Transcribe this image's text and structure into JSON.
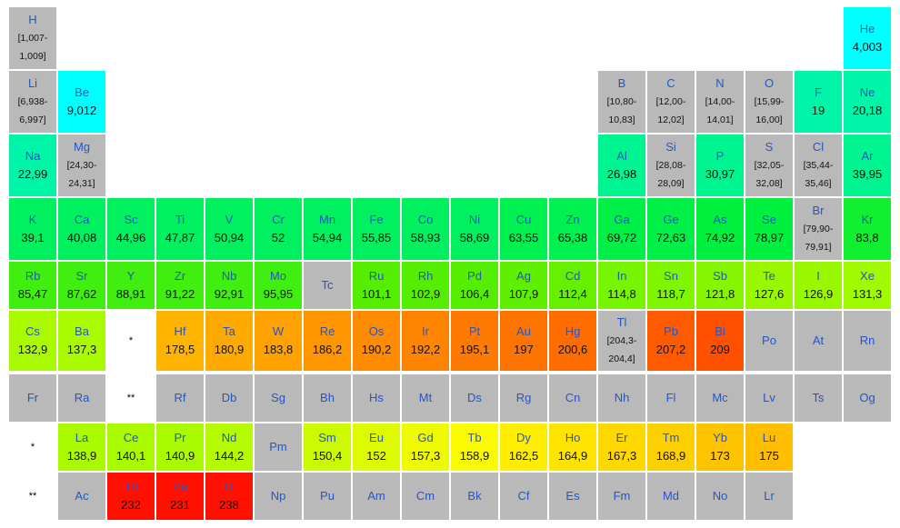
{
  "table": {
    "rows": [
      [
        {
          "symbol": "H",
          "weight": "[1,007-1,009]",
          "color": "#b9b9b9"
        },
        null,
        null,
        null,
        null,
        null,
        null,
        null,
        null,
        null,
        null,
        null,
        null,
        null,
        null,
        null,
        null,
        {
          "symbol": "He",
          "weight": "4,003",
          "color": "#00ffff"
        }
      ],
      [
        {
          "symbol": "Li",
          "weight": "[6,938-6,997]",
          "color": "#b9b9b9"
        },
        {
          "symbol": "Be",
          "weight": "9,012",
          "color": "#00ffff"
        },
        null,
        null,
        null,
        null,
        null,
        null,
        null,
        null,
        null,
        null,
        {
          "symbol": "B",
          "weight": "[10,80-10,83]",
          "color": "#b9b9b9"
        },
        {
          "symbol": "C",
          "weight": "[12,00-12,02]",
          "color": "#b9b9b9"
        },
        {
          "symbol": "N",
          "weight": "[14,00-14,01]",
          "color": "#b9b9b9"
        },
        {
          "symbol": "O",
          "weight": "[15,99-16,00]",
          "color": "#b9b9b9"
        },
        {
          "symbol": "F",
          "weight": "19",
          "color": "#00f5a8"
        },
        {
          "symbol": "Ne",
          "weight": "20,18",
          "color": "#00f5a8"
        }
      ],
      [
        {
          "symbol": "Na",
          "weight": "22,99",
          "color": "#00f5a8"
        },
        {
          "symbol": "Mg",
          "weight": "[24,30-24,31]",
          "color": "#b9b9b9"
        },
        null,
        null,
        null,
        null,
        null,
        null,
        null,
        null,
        null,
        null,
        {
          "symbol": "Al",
          "weight": "26,98",
          "color": "#00f590"
        },
        {
          "symbol": "Si",
          "weight": "[28,08-28,09]",
          "color": "#b9b9b9"
        },
        {
          "symbol": "P",
          "weight": "30,97",
          "color": "#00f590"
        },
        {
          "symbol": "S",
          "weight": "[32,05-32,08]",
          "color": "#b9b9b9"
        },
        {
          "symbol": "Cl",
          "weight": "[35,44-35,46]",
          "color": "#b9b9b9"
        },
        {
          "symbol": "Ar",
          "weight": "39,95",
          "color": "#00f590"
        }
      ],
      [
        {
          "symbol": "K",
          "weight": "39,1",
          "color": "#00f060"
        },
        {
          "symbol": "Ca",
          "weight": "40,08",
          "color": "#00f060"
        },
        {
          "symbol": "Sc",
          "weight": "44,96",
          "color": "#00f060"
        },
        {
          "symbol": "Ti",
          "weight": "47,87",
          "color": "#00f060"
        },
        {
          "symbol": "V",
          "weight": "50,94",
          "color": "#00f060"
        },
        {
          "symbol": "Cr",
          "weight": "52",
          "color": "#00f060"
        },
        {
          "symbol": "Mn",
          "weight": "54,94",
          "color": "#00f060"
        },
        {
          "symbol": "Fe",
          "weight": "55,85",
          "color": "#00f060"
        },
        {
          "symbol": "Co",
          "weight": "58,93",
          "color": "#00f060"
        },
        {
          "symbol": "Ni",
          "weight": "58,69",
          "color": "#00f060"
        },
        {
          "symbol": "Cu",
          "weight": "63,55",
          "color": "#00f050"
        },
        {
          "symbol": "Zn",
          "weight": "65,38",
          "color": "#00f050"
        },
        {
          "symbol": "Ga",
          "weight": "69,72",
          "color": "#00f048"
        },
        {
          "symbol": "Ge",
          "weight": "72,63",
          "color": "#00f048"
        },
        {
          "symbol": "As",
          "weight": "74,92",
          "color": "#00f040"
        },
        {
          "symbol": "Se",
          "weight": "78,97",
          "color": "#00f040"
        },
        {
          "symbol": "Br",
          "weight": "[79,90-79,91]",
          "color": "#b9b9b9"
        },
        {
          "symbol": "Kr",
          "weight": "83,8",
          "color": "#10f030"
        }
      ],
      [
        {
          "symbol": "Rb",
          "weight": "85,47",
          "color": "#40ee10"
        },
        {
          "symbol": "Sr",
          "weight": "87,62",
          "color": "#40ee10"
        },
        {
          "symbol": "Y",
          "weight": "88,91",
          "color": "#40ee10"
        },
        {
          "symbol": "Zr",
          "weight": "91,22",
          "color": "#40ee10"
        },
        {
          "symbol": "Nb",
          "weight": "92,91",
          "color": "#40ee10"
        },
        {
          "symbol": "Mo",
          "weight": "95,95",
          "color": "#40ee10"
        },
        {
          "symbol": "Tc",
          "color": "#b9b9b9"
        },
        {
          "symbol": "Ru",
          "weight": "101,1",
          "color": "#55ee00"
        },
        {
          "symbol": "Rh",
          "weight": "102,9",
          "color": "#55ee00"
        },
        {
          "symbol": "Pd",
          "weight": "106,4",
          "color": "#55ee00"
        },
        {
          "symbol": "Ag",
          "weight": "107,9",
          "color": "#5ff000"
        },
        {
          "symbol": "Cd",
          "weight": "112,4",
          "color": "#66f000"
        },
        {
          "symbol": "In",
          "weight": "114,8",
          "color": "#77f500"
        },
        {
          "symbol": "Sn",
          "weight": "118,7",
          "color": "#80f500"
        },
        {
          "symbol": "Sb",
          "weight": "121,8",
          "color": "#88f500"
        },
        {
          "symbol": "Te",
          "weight": "127,6",
          "color": "#99f800"
        },
        {
          "symbol": "I",
          "weight": "126,9",
          "color": "#99f800"
        },
        {
          "symbol": "Xe",
          "weight": "131,3",
          "color": "#a0fa00"
        }
      ],
      [
        {
          "symbol": "Cs",
          "weight": "132,9",
          "color": "#aafa00"
        },
        {
          "symbol": "Ba",
          "weight": "137,3",
          "color": "#aafa00"
        },
        {
          "symbol": "*"
        },
        {
          "symbol": "Hf",
          "weight": "178,5",
          "color": "#ffb400"
        },
        {
          "symbol": "Ta",
          "weight": "180,9",
          "color": "#ffaa00"
        },
        {
          "symbol": "W",
          "weight": "183,8",
          "color": "#ffa200"
        },
        {
          "symbol": "Re",
          "weight": "186,2",
          "color": "#ff9600"
        },
        {
          "symbol": "Os",
          "weight": "190,2",
          "color": "#ff8c00"
        },
        {
          "symbol": "Ir",
          "weight": "192,2",
          "color": "#ff8400"
        },
        {
          "symbol": "Pt",
          "weight": "195,1",
          "color": "#ff7a00"
        },
        {
          "symbol": "Au",
          "weight": "197",
          "color": "#ff7400"
        },
        {
          "symbol": "Hg",
          "weight": "200,6",
          "color": "#ff6c00"
        },
        {
          "symbol": "Tl",
          "weight": "[204,3-204,4]",
          "color": "#b9b9b9"
        },
        {
          "symbol": "Pb",
          "weight": "207,2",
          "color": "#ff5a00"
        },
        {
          "symbol": "Bi",
          "weight": "209",
          "color": "#ff5000"
        },
        {
          "symbol": "Po",
          "color": "#b9b9b9"
        },
        {
          "symbol": "At",
          "color": "#b9b9b9"
        },
        {
          "symbol": "Rn",
          "color": "#b9b9b9"
        }
      ],
      [
        {
          "symbol": "Fr",
          "color": "#b9b9b9"
        },
        {
          "symbol": "Ra",
          "color": "#b9b9b9"
        },
        {
          "symbol": "**"
        },
        {
          "symbol": "Rf",
          "color": "#b9b9b9"
        },
        {
          "symbol": "Db",
          "color": "#b9b9b9"
        },
        {
          "symbol": "Sg",
          "color": "#b9b9b9"
        },
        {
          "symbol": "Bh",
          "color": "#b9b9b9"
        },
        {
          "symbol": "Hs",
          "color": "#b9b9b9"
        },
        {
          "symbol": "Mt",
          "color": "#b9b9b9"
        },
        {
          "symbol": "Ds",
          "color": "#b9b9b9"
        },
        {
          "symbol": "Rg",
          "color": "#b9b9b9"
        },
        {
          "symbol": "Cn",
          "color": "#b9b9b9"
        },
        {
          "symbol": "Nh",
          "color": "#b9b9b9"
        },
        {
          "symbol": "Fl",
          "color": "#b9b9b9"
        },
        {
          "symbol": "Mc",
          "color": "#b9b9b9"
        },
        {
          "symbol": "Lv",
          "color": "#b9b9b9"
        },
        {
          "symbol": "Ts",
          "color": "#b9b9b9"
        },
        {
          "symbol": "Og",
          "color": "#b9b9b9"
        }
      ],
      [
        {
          "symbol": "*"
        },
        {
          "symbol": "La",
          "weight": "138,9",
          "color": "#aafa00"
        },
        {
          "symbol": "Ce",
          "weight": "140,1",
          "color": "#aafa00"
        },
        {
          "symbol": "Pr",
          "weight": "140,9",
          "color": "#aafa00"
        },
        {
          "symbol": "Nd",
          "weight": "144,2",
          "color": "#b4fa00"
        },
        {
          "symbol": "Pm",
          "color": "#b9b9b9"
        },
        {
          "symbol": "Sm",
          "weight": "150,4",
          "color": "#ccfa00"
        },
        {
          "symbol": "Eu",
          "weight": "152",
          "color": "#ddfa00"
        },
        {
          "symbol": "Gd",
          "weight": "157,3",
          "color": "#eefa00"
        },
        {
          "symbol": "Tb",
          "weight": "158,9",
          "color": "#fafa00"
        },
        {
          "symbol": "Dy",
          "weight": "162,5",
          "color": "#ffee00"
        },
        {
          "symbol": "Ho",
          "weight": "164,9",
          "color": "#ffe400"
        },
        {
          "symbol": "Er",
          "weight": "167,3",
          "color": "#ffd800"
        },
        {
          "symbol": "Tm",
          "weight": "168,9",
          "color": "#ffd000"
        },
        {
          "symbol": "Yb",
          "weight": "173",
          "color": "#ffc400"
        },
        {
          "symbol": "Lu",
          "weight": "175",
          "color": "#ffbe00"
        },
        null,
        null
      ],
      [
        {
          "symbol": "**"
        },
        {
          "symbol": "Ac",
          "color": "#b9b9b9"
        },
        {
          "symbol": "Th",
          "weight": "232",
          "color": "#ff1000"
        },
        {
          "symbol": "Pa",
          "weight": "231",
          "color": "#ff1000"
        },
        {
          "symbol": "U",
          "weight": "238",
          "color": "#ff1000"
        },
        {
          "symbol": "Np",
          "color": "#b9b9b9"
        },
        {
          "symbol": "Pu",
          "color": "#b9b9b9"
        },
        {
          "symbol": "Am",
          "color": "#b9b9b9"
        },
        {
          "symbol": "Cm",
          "color": "#b9b9b9"
        },
        {
          "symbol": "Bk",
          "color": "#b9b9b9"
        },
        {
          "symbol": "Cf",
          "color": "#b9b9b9"
        },
        {
          "symbol": "Es",
          "color": "#b9b9b9"
        },
        {
          "symbol": "Fm",
          "color": "#b9b9b9"
        },
        {
          "symbol": "Md",
          "color": "#b9b9b9"
        },
        {
          "symbol": "No",
          "color": "#b9b9b9"
        },
        {
          "symbol": "Lr",
          "color": "#b9b9b9"
        },
        null,
        null
      ]
    ]
  }
}
